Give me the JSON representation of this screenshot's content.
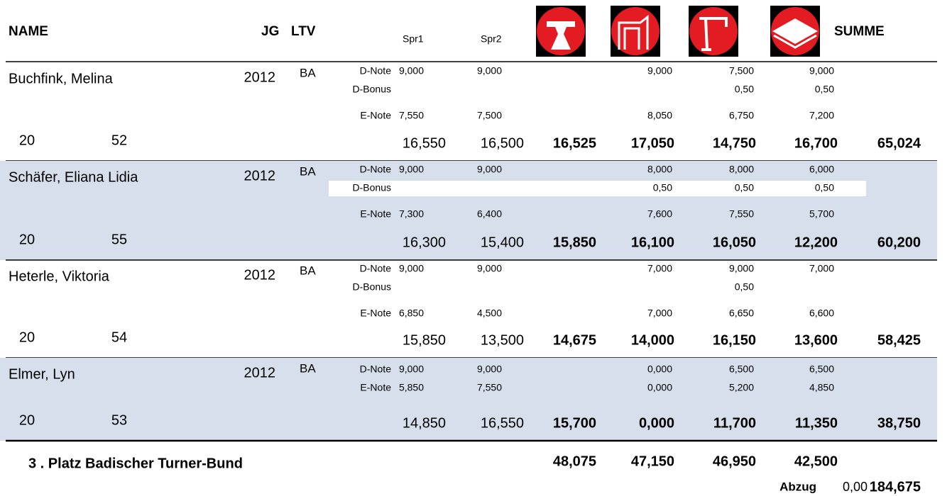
{
  "header": {
    "name": "NAME",
    "jg": "JG",
    "ltv": "LTV",
    "spr1": "Spr1",
    "spr2": "Spr2",
    "summe": "SUMME"
  },
  "athletes": [
    {
      "name": "Buchfink, Melina",
      "jg": "2012",
      "ltv": "BA",
      "num1": "20",
      "num2": "52",
      "rows": [
        {
          "label": "D-Note",
          "values": [
            "9,000",
            "9,000",
            "9,000",
            "7,500",
            "9,000"
          ]
        },
        {
          "label": "D-Bonus",
          "values": [
            null,
            null,
            null,
            "0,50",
            "0,50"
          ]
        },
        {
          "label": "E-Note",
          "values": [
            "7,550",
            "7,500",
            "8,050",
            "6,750",
            "7,200"
          ]
        }
      ],
      "totals": [
        "16,550",
        "16,500",
        "16,525",
        "17,050",
        "14,750",
        "16,700",
        "65,024"
      ]
    },
    {
      "name": "Schäfer, Eliana Lidia",
      "jg": "2012",
      "ltv": "BA",
      "num1": "20",
      "num2": "55",
      "rows": [
        {
          "label": "D-Note",
          "values": [
            "9,000",
            "9,000",
            "8,000",
            "8,000",
            "6,000"
          ]
        },
        {
          "label": "D-Bonus",
          "values": [
            null,
            null,
            "0,50",
            "0,50",
            "0,50"
          ]
        },
        {
          "label": "E-Note",
          "values": [
            "7,300",
            "6,400",
            "7,600",
            "7,550",
            "5,700"
          ]
        }
      ],
      "totals": [
        "16,300",
        "15,400",
        "15,850",
        "16,100",
        "16,050",
        "12,200",
        "60,200"
      ]
    },
    {
      "name": "Heterle, Viktoria",
      "jg": "2012",
      "ltv": "BA",
      "num1": "20",
      "num2": "54",
      "rows": [
        {
          "label": "D-Note",
          "values": [
            "9,000",
            "9,000",
            "7,000",
            "9,000",
            "7,000"
          ]
        },
        {
          "label": "D-Bonus",
          "values": [
            null,
            null,
            null,
            "0,50",
            null
          ]
        },
        {
          "label": "E-Note",
          "values": [
            "6,850",
            "4,500",
            "7,000",
            "6,650",
            "6,600"
          ]
        }
      ],
      "totals": [
        "15,850",
        "13,500",
        "14,675",
        "14,000",
        "16,150",
        "13,600",
        "58,425"
      ]
    },
    {
      "name": "Elmer, Lyn",
      "jg": "2012",
      "ltv": "BA",
      "num1": "20",
      "num2": "53",
      "rows": [
        {
          "label": "D-Note",
          "values": [
            "9,000",
            "9,000",
            "0,000",
            "6,500",
            "6,500"
          ]
        },
        {
          "label": "E-Note",
          "values": [
            "5,850",
            "7,550",
            "0,000",
            "5,200",
            "4,850"
          ]
        }
      ],
      "totals": [
        "14,850",
        "16,550",
        "15,700",
        "0,000",
        "11,700",
        "11,350",
        "38,750"
      ]
    }
  ],
  "footer": {
    "place": "3 . Platz  Badischer Turner-Bund",
    "totals": [
      "48,075",
      "47,150",
      "46,950",
      "42,500"
    ],
    "abzug_label": "Abzug",
    "abzug": "0,00",
    "sum": "184,675"
  }
}
